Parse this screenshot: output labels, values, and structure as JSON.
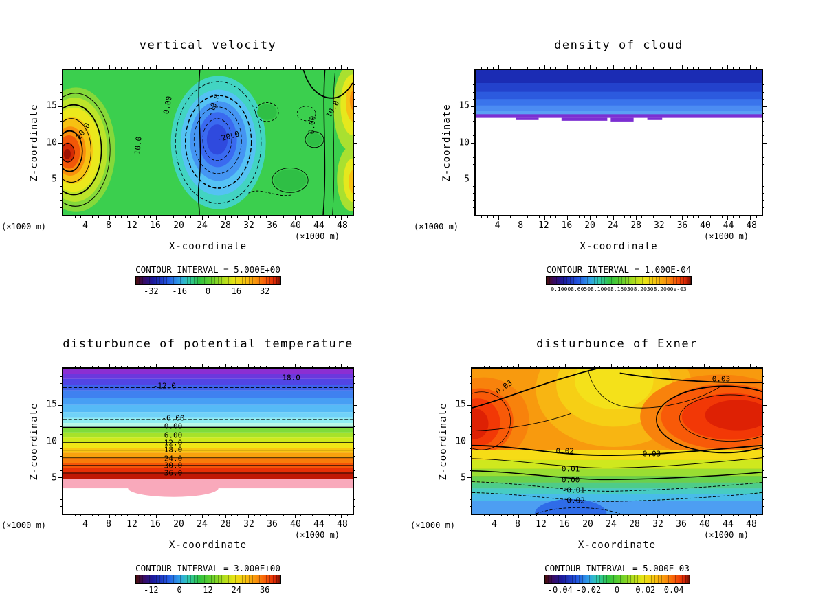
{
  "figure": {
    "background": "#ffffff",
    "text_color": "#000000"
  },
  "chart_data": [
    {
      "type": "contour",
      "panel": "top-left",
      "title": "vertical velocity",
      "xlabel": "X-coordinate",
      "ylabel": "Z-coordinate",
      "unit_left": "(×1000 m)",
      "unit_right": "(×1000 m)",
      "xlim": [
        0,
        50
      ],
      "ylim": [
        0,
        20
      ],
      "x_ticks": [
        4,
        8,
        12,
        16,
        20,
        24,
        28,
        32,
        36,
        40,
        44,
        48
      ],
      "y_ticks": [
        5,
        10,
        15
      ],
      "x_minor_step": 1,
      "y_minor_step": 1,
      "grid": false,
      "contour_interval_label": "CONTOUR INTERVAL = 5.000E+00",
      "contour_interval_value": 5.0,
      "labeled_contours": [
        20.0,
        10.0,
        0.0,
        -10.0,
        -20.0
      ],
      "annotations": [
        {
          "text": "20.0",
          "x": 7,
          "y": 42,
          "rot": -55
        },
        {
          "text": "10.0",
          "x": 26,
          "y": 52,
          "rot": -85
        },
        {
          "text": "0.00",
          "x": 36,
          "y": 24,
          "rot": -80
        },
        {
          "text": "-10.0",
          "x": 52,
          "y": 24,
          "rot": -70
        },
        {
          "text": "-20.0",
          "x": 57,
          "y": 46,
          "rot": -15
        },
        {
          "text": "0.00",
          "x": 86,
          "y": 38,
          "rot": -85
        },
        {
          "text": "10.0",
          "x": 93,
          "y": 27,
          "rot": -60
        }
      ],
      "colorbar": {
        "labels": [
          {
            "text": "-32",
            "pos": 11
          },
          {
            "text": "-16",
            "pos": 30.5
          },
          {
            "text": "0",
            "pos": 50
          },
          {
            "text": "16",
            "pos": 69.5
          },
          {
            "text": "32",
            "pos": 89
          }
        ],
        "palette": [
          "#4a0d08",
          "#1a1a9e",
          "#2256e2",
          "#2fc9b2",
          "#2fc23f",
          "#a8dc1e",
          "#e9e414",
          "#f8c10f",
          "#f88c0b",
          "#df2805",
          "#6e0f03"
        ]
      },
      "features": [
        {
          "name": "updraft-core",
          "x_km": 2,
          "z_km": 8.5,
          "approx_value": 35
        },
        {
          "name": "downdraft-core",
          "x_km": 27,
          "z_km": 10,
          "approx_value": -30
        },
        {
          "name": "right-edge-updraft",
          "x_km": 50,
          "z_km": 15,
          "approx_value": 15
        }
      ]
    },
    {
      "type": "contour",
      "panel": "top-right",
      "title": "density of cloud",
      "xlabel": "X-coordinate",
      "ylabel": "Z-coordinate",
      "unit_left": "(×1000 m)",
      "unit_right": "(×1000 m)",
      "xlim": [
        0,
        50
      ],
      "ylim": [
        0,
        20
      ],
      "x_ticks": [
        4,
        8,
        12,
        16,
        20,
        24,
        28,
        32,
        36,
        40,
        44,
        48
      ],
      "y_ticks": [
        5,
        10,
        15
      ],
      "x_minor_step": 1,
      "y_minor_step": 1,
      "grid": false,
      "contour_interval_label": "CONTOUR INTERVAL = 1.000E-04",
      "contour_interval_value": 0.0001,
      "labeled_contours": [],
      "annotations": [],
      "colorbar": {
        "small": true,
        "labels": [
          {
            "text": "0.10008.60508.10008.160308.20308.2000e-03",
            "pos": 50
          }
        ],
        "palette": [
          "#4a0d08",
          "#1a1a9e",
          "#2256e2",
          "#2fc9b2",
          "#2fc23f",
          "#a8dc1e",
          "#e9e414",
          "#f8c10f",
          "#f88c0b",
          "#df2805",
          "#6e0f03"
        ]
      },
      "features": [
        {
          "name": "cloud-layer",
          "z_top_km": 20,
          "z_base_km": 13.5,
          "approx_max_density": "2.0E-03"
        },
        {
          "name": "cloud-base-band",
          "z_km": 13.5,
          "color": "#7c2fd2"
        }
      ]
    },
    {
      "type": "contour",
      "panel": "bottom-left",
      "title": "disturbunce of potential temperature",
      "xlabel": "X-coordinate",
      "ylabel": "Z-coordinate",
      "unit_left": "(×1000 m)",
      "unit_right": "(×1000 m)",
      "xlim": [
        0,
        50
      ],
      "ylim": [
        0,
        20
      ],
      "x_ticks": [
        4,
        8,
        12,
        16,
        20,
        24,
        28,
        32,
        36,
        40,
        44,
        48
      ],
      "y_ticks": [
        5,
        10,
        15
      ],
      "x_minor_step": 1,
      "y_minor_step": 1,
      "grid": false,
      "contour_interval_label": "CONTOUR INTERVAL = 3.000E+00",
      "contour_interval_value": 3.0,
      "labeled_contours": [
        -18.0,
        -12.0,
        -6.0,
        0.0,
        6.0,
        12.0,
        18.0,
        24.0,
        30.0,
        36.0
      ],
      "annotations": [
        {
          "text": "-18.0",
          "x": 78,
          "y": 6
        },
        {
          "text": "-12.0",
          "x": 35,
          "y": 12
        },
        {
          "text": "-6.00",
          "x": 38,
          "y": 34
        },
        {
          "text": "0.00",
          "x": 38,
          "y": 40
        },
        {
          "text": "6.00",
          "x": 38,
          "y": 46
        },
        {
          "text": "12.0",
          "x": 38,
          "y": 51
        },
        {
          "text": "18.0",
          "x": 38,
          "y": 56
        },
        {
          "text": "24.0",
          "x": 38,
          "y": 62
        },
        {
          "text": "30.0",
          "x": 38,
          "y": 67
        },
        {
          "text": "36.0",
          "x": 38,
          "y": 72
        }
      ],
      "colorbar": {
        "labels": [
          {
            "text": "-12",
            "pos": 11
          },
          {
            "text": "0",
            "pos": 30.5
          },
          {
            "text": "12",
            "pos": 50
          },
          {
            "text": "24",
            "pos": 69.5
          },
          {
            "text": "36",
            "pos": 89
          }
        ],
        "palette": [
          "#4a0d08",
          "#1a1a9e",
          "#2256e2",
          "#2fc9b2",
          "#2fc23f",
          "#a8dc1e",
          "#e9e414",
          "#f8c10f",
          "#f88c0b",
          "#df2805",
          "#6e0f03"
        ]
      },
      "features": [
        {
          "name": "stratified-layers",
          "description": "horizontal layers from about -18 at z≈18 down to about +39 near z≈4"
        },
        {
          "name": "masked-region",
          "description": "white below z≈3.5 with slight dip near x≈16"
        }
      ]
    },
    {
      "type": "contour",
      "panel": "bottom-right",
      "title": "disturbunce of Exner",
      "xlabel": "X-coordinate",
      "ylabel": "Z-coordinate",
      "unit_left": "(×1000 m)",
      "unit_right": "(×1000 m)",
      "xlim": [
        0,
        50
      ],
      "ylim": [
        0,
        20
      ],
      "x_ticks": [
        4,
        8,
        12,
        16,
        20,
        24,
        28,
        32,
        36,
        40,
        44,
        48
      ],
      "y_ticks": [
        5,
        10,
        15
      ],
      "x_minor_step": 1,
      "y_minor_step": 1,
      "grid": false,
      "contour_interval_label": "CONTOUR INTERVAL = 5.000E-03",
      "contour_interval_value": 0.005,
      "labeled_contours": [
        0.03,
        0.02,
        0.01,
        0.0,
        -0.01,
        -0.02
      ],
      "annotations": [
        {
          "text": "0.03",
          "x": 86,
          "y": 7
        },
        {
          "text": "0.03",
          "x": 11,
          "y": 13,
          "rot": -35
        },
        {
          "text": "0.02",
          "x": 32,
          "y": 57
        },
        {
          "text": "0.03",
          "x": 62,
          "y": 59
        },
        {
          "text": "0.01",
          "x": 34,
          "y": 69
        },
        {
          "text": "0.00",
          "x": 34,
          "y": 77
        },
        {
          "text": "-0.01",
          "x": 35,
          "y": 84
        },
        {
          "text": "-0.02",
          "x": 35,
          "y": 91
        }
      ],
      "colorbar": {
        "labels": [
          {
            "text": "-0.04",
            "pos": 11
          },
          {
            "text": "-0.02",
            "pos": 30.5
          },
          {
            "text": "0",
            "pos": 50
          },
          {
            "text": "0.02",
            "pos": 69.5
          },
          {
            "text": "0.04",
            "pos": 89
          }
        ],
        "palette": [
          "#4a0d08",
          "#1a1a9e",
          "#2256e2",
          "#2fc9b2",
          "#2fc23f",
          "#a8dc1e",
          "#e9e414",
          "#f8c10f",
          "#f88c0b",
          "#df2805",
          "#6e0f03"
        ]
      },
      "features": [
        {
          "name": "high-left",
          "x_km": 1,
          "z_km": 12.5,
          "approx_value": 0.037
        },
        {
          "name": "high-right",
          "x_km": 44,
          "z_km": 13,
          "approx_value": 0.037
        },
        {
          "name": "saddle-center-top",
          "x_km": 17,
          "z_km": 18,
          "approx_value": 0.025
        },
        {
          "name": "low-bottom",
          "x_km": 17,
          "z_km": 0.5,
          "approx_value": -0.035
        }
      ]
    }
  ]
}
